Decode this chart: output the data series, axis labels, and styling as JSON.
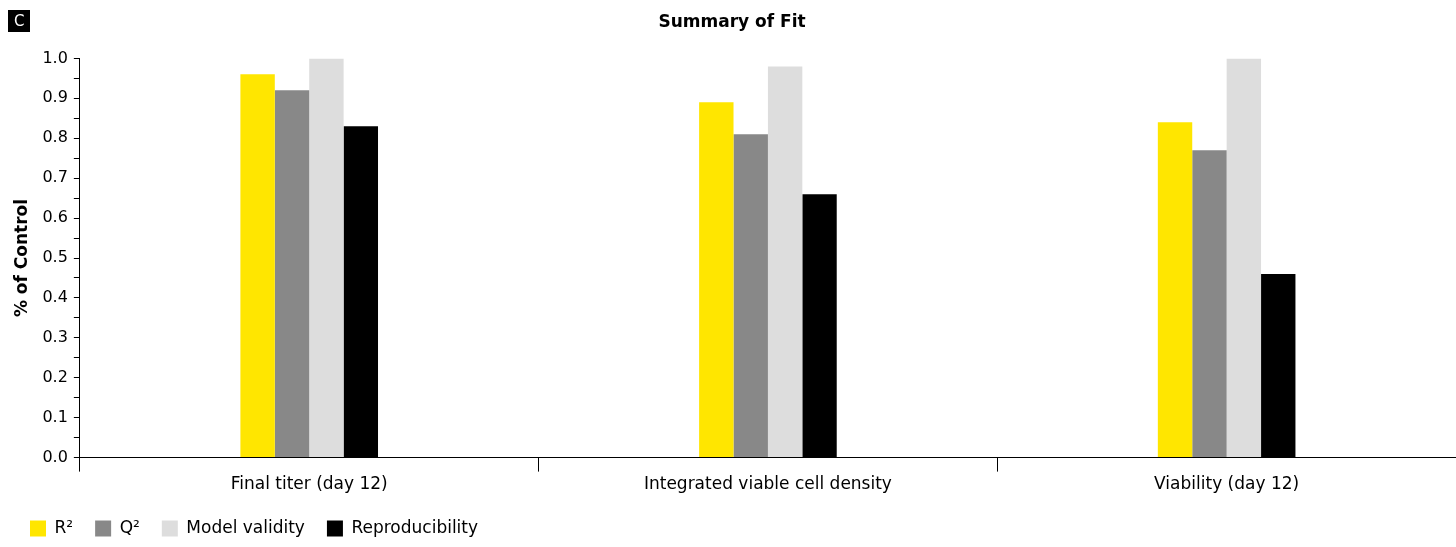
{
  "chart_data": {
    "type": "bar",
    "title": "Summary of Fit",
    "ylabel": "% of Control",
    "categories": [
      "Final titer (day 12)",
      "Integrated viable cell density",
      "Viability (day 12)"
    ],
    "series": [
      {
        "name": "R²",
        "color": "#ffe600",
        "values": [
          0.96,
          0.89,
          0.84
        ]
      },
      {
        "name": "Q²",
        "color": "#888888",
        "values": [
          0.92,
          0.81,
          0.77
        ]
      },
      {
        "name": "Model validity",
        "color": "#dddddd",
        "values": [
          1.0,
          0.98,
          1.0
        ]
      },
      {
        "name": "Reproducibility",
        "color": "#000000",
        "values": [
          0.83,
          0.66,
          0.46
        ]
      }
    ],
    "ylim": [
      0,
      1
    ],
    "yticks": [
      {
        "value": 0,
        "label": "0.0"
      },
      {
        "value": 0.05,
        "label": null
      },
      {
        "value": 0.1,
        "label": "0.1"
      },
      {
        "value": 0.15,
        "label": null
      },
      {
        "value": 0.2,
        "label": "0.2"
      },
      {
        "value": 0.25,
        "label": null
      },
      {
        "value": 0.3,
        "label": "0.3"
      },
      {
        "value": 0.35,
        "label": null
      },
      {
        "value": 0.4,
        "label": "0.4"
      },
      {
        "value": 0.45,
        "label": null
      },
      {
        "value": 0.5,
        "label": "0.5"
      },
      {
        "value": 0.55,
        "label": null
      },
      {
        "value": 0.6,
        "label": "0.6"
      },
      {
        "value": 0.65,
        "label": null
      },
      {
        "value": 0.7,
        "label": "0.7"
      },
      {
        "value": 0.75,
        "label": null
      },
      {
        "value": 0.8,
        "label": "0.8"
      },
      {
        "value": 0.85,
        "label": null
      },
      {
        "value": 0.9,
        "label": "0.9"
      },
      {
        "value": 0.95,
        "label": null
      },
      {
        "value": 1,
        "label": "1.0"
      }
    ],
    "annotations": [
      "C"
    ],
    "legend": "bottom left",
    "grid": false
  }
}
